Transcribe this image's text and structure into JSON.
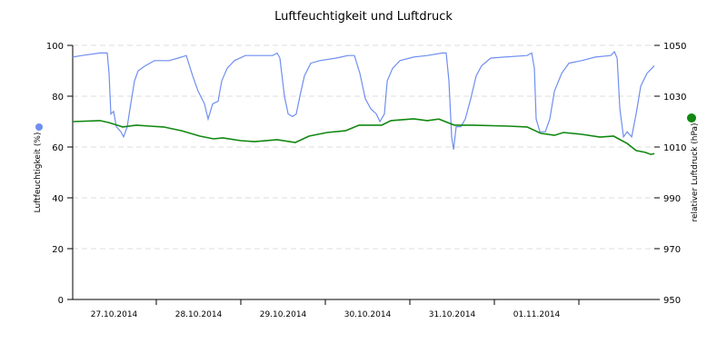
{
  "chart_data": {
    "type": "line",
    "title": "Luftfeuchtigkeit und Luftdruck",
    "xlabel": "",
    "x_tick_labels": [
      "27.10.2014",
      "28.10.2014",
      "29.10.2014",
      "30.10.2014",
      "31.10.2014",
      "01.11.2014"
    ],
    "xlim": [
      "27.10.2014 00:00",
      "02.11.2014 21:30"
    ],
    "grid": true,
    "y_left": {
      "label": "Luftfeuchtigkeit (%)",
      "lim": [
        0,
        100
      ],
      "ticks": [
        "0",
        "20",
        "40",
        "60",
        "80",
        "100"
      ]
    },
    "y_right": {
      "label": "relativer Luftdruck (hPa)",
      "lim": [
        950,
        1050
      ],
      "ticks": [
        "950",
        "970",
        "990",
        "1010",
        "1030",
        "1050"
      ]
    },
    "series": [
      {
        "axis": "left",
        "color": "#6f8ff0",
        "points": [
          [
            "27.10.2014 00:15",
            95.4
          ],
          [
            "27.10.2014 02:50",
            96
          ],
          [
            "27.10.2014 08:00",
            97
          ],
          [
            "27.10.2014 10:04",
            97
          ],
          [
            "27.10.2014 10:35",
            89
          ],
          [
            "27.10.2014 11:06",
            73
          ],
          [
            "27.10.2014 11:52",
            74
          ],
          [
            "27.10.2014 12:39",
            68
          ],
          [
            "27.10.2014 13:56",
            66
          ],
          [
            "27.10.2014 14:43",
            64
          ],
          [
            "27.10.2014 15:45",
            68
          ],
          [
            "27.10.2014 16:31",
            75
          ],
          [
            "27.10.2014 17:49",
            86
          ],
          [
            "27.10.2014 18:50",
            90
          ],
          [
            "27.10.2014 20:54",
            92
          ],
          [
            "27.10.2014 23:29",
            94
          ],
          [
            "28.10.2014 03:37",
            94
          ],
          [
            "28.10.2014 06:12",
            95
          ],
          [
            "28.10.2014 08:31",
            96
          ],
          [
            "28.10.2014 10:20",
            88
          ],
          [
            "28.10.2014 11:53",
            82
          ],
          [
            "28.10.2014 13:41",
            77
          ],
          [
            "28.10.2014 14:43",
            71
          ],
          [
            "28.10.2014 16:00",
            77
          ],
          [
            "28.10.2014 17:33",
            78
          ],
          [
            "28.10.2014 18:35",
            86
          ],
          [
            "28.10.2014 20:08",
            91
          ],
          [
            "28.10.2014 22:12",
            94
          ],
          [
            "29.10.2014 01:18",
            96
          ],
          [
            "29.10.2014 09:02",
            96
          ],
          [
            "29.10.2014 10:20",
            97
          ],
          [
            "29.10.2014 11:06",
            95
          ],
          [
            "29.10.2014 12:24",
            80
          ],
          [
            "29.10.2014 13:26",
            73
          ],
          [
            "29.10.2014 14:43",
            72
          ],
          [
            "29.10.2014 15:45",
            73
          ],
          [
            "29.10.2014 16:47",
            80
          ],
          [
            "29.10.2014 18:04",
            88
          ],
          [
            "29.10.2014 19:52",
            93
          ],
          [
            "29.10.2014 22:27",
            94
          ],
          [
            "30.10.2014 03:06",
            95
          ],
          [
            "30.10.2014 06:27",
            96
          ],
          [
            "30.10.2014 08:16",
            96
          ],
          [
            "30.10.2014 09:49",
            89
          ],
          [
            "30.10.2014 11:22",
            79
          ],
          [
            "30.10.2014 12:55",
            75
          ],
          [
            "30.10.2014 14:28",
            73
          ],
          [
            "30.10.2014 15:30",
            70
          ],
          [
            "30.10.2014 16:47",
            73
          ],
          [
            "30.10.2014 17:34",
            86
          ],
          [
            "30.10.2014 19:07",
            91
          ],
          [
            "30.10.2014 21:11",
            94
          ],
          [
            "31.10.2014 01:03",
            95.4
          ],
          [
            "31.10.2014 04:55",
            96
          ],
          [
            "31.10.2014 09:18",
            97
          ],
          [
            "31.10.2014 10:20",
            97
          ],
          [
            "31.10.2014 11:06",
            86
          ],
          [
            "31.10.2014 11:53",
            64
          ],
          [
            "31.10.2014 12:24",
            59
          ],
          [
            "31.10.2014 13:10",
            68
          ],
          [
            "31.10.2014 14:28",
            68
          ],
          [
            "31.10.2014 15:45",
            71
          ],
          [
            "31.10.2014 17:18",
            79
          ],
          [
            "31.10.2014 18:51",
            88
          ],
          [
            "31.10.2014 20:24",
            92
          ],
          [
            "31.10.2014 22:59",
            95
          ],
          [
            "01.11.2014 02:51",
            95.4
          ],
          [
            "01.11.2014 09:18",
            96
          ],
          [
            "01.11.2014 10:36",
            97
          ],
          [
            "01.11.2014 11:22",
            91
          ],
          [
            "01.11.2014 11:53",
            71
          ],
          [
            "01.11.2014 12:55",
            66
          ],
          [
            "01.11.2014 14:28",
            66
          ],
          [
            "01.11.2014 15:45",
            71
          ],
          [
            "01.11.2014 17:03",
            82
          ],
          [
            "01.11.2014 19:07",
            89
          ],
          [
            "01.11.2014 21:11",
            93
          ],
          [
            "02.11.2014 00:48",
            94
          ],
          [
            "02.11.2014 04:41",
            95.4
          ],
          [
            "02.11.2014 09:04",
            96
          ],
          [
            "02.11.2014 10:06",
            97.5
          ],
          [
            "02.11.2014 10:52",
            95
          ],
          [
            "02.11.2014 11:38",
            75
          ],
          [
            "02.11.2014 12:40",
            64
          ],
          [
            "02.11.2014 13:42",
            66
          ],
          [
            "02.11.2014 14:59",
            64
          ],
          [
            "02.11.2014 16:16",
            73
          ],
          [
            "02.11.2014 17:34",
            84
          ],
          [
            "02.11.2014 19:22",
            89
          ],
          [
            "02.11.2014 21:26",
            92
          ]
        ]
      },
      {
        "axis": "right",
        "color": "#118811",
        "points": [
          [
            "27.10.2014 00:15",
            1020
          ],
          [
            "27.10.2014 08:00",
            1020.4
          ],
          [
            "27.10.2014 10:35",
            1019.6
          ],
          [
            "27.10.2014 14:27",
            1017.9
          ],
          [
            "27.10.2014 18:19",
            1018.6
          ],
          [
            "27.10.2014 22:12",
            1018.2
          ],
          [
            "28.10.2014 02:04",
            1017.9
          ],
          [
            "28.10.2014 07:14",
            1016.4
          ],
          [
            "28.10.2014 12:23",
            1014.3
          ],
          [
            "28.10.2014 16:16",
            1013.2
          ],
          [
            "28.10.2014 18:51",
            1013.6
          ],
          [
            "29.10.2014 00:00",
            1012.5
          ],
          [
            "29.10.2014 03:53",
            1012.1
          ],
          [
            "29.10.2014 10:20",
            1012.9
          ],
          [
            "29.10.2014 15:29",
            1011.8
          ],
          [
            "29.10.2014 19:22",
            1014.3
          ],
          [
            "30.10.2014 00:32",
            1015.7
          ],
          [
            "30.10.2014 05:42",
            1016.4
          ],
          [
            "30.10.2014 09:34",
            1018.6
          ],
          [
            "30.10.2014 16:01",
            1018.6
          ],
          [
            "30.10.2014 18:36",
            1020.4
          ],
          [
            "31.10.2014 01:03",
            1021.1
          ],
          [
            "31.10.2014 04:55",
            1020.4
          ],
          [
            "31.10.2014 08:16",
            1021
          ],
          [
            "31.10.2014 12:39",
            1018.6
          ],
          [
            "31.10.2014 17:49",
            1018.6
          ],
          [
            "01.11.2014 04:09",
            1018.2
          ],
          [
            "01.11.2014 09:18",
            1017.9
          ],
          [
            "01.11.2014 13:10",
            1015.4
          ],
          [
            "01.11.2014 17:03",
            1014.6
          ],
          [
            "01.11.2014 19:38",
            1015.7
          ],
          [
            "02.11.2014 00:48",
            1015
          ],
          [
            "02.11.2014 06:00",
            1013.9
          ],
          [
            "02.11.2014 09:52",
            1014.3
          ],
          [
            "02.11.2014 13:42",
            1011.4
          ],
          [
            "02.11.2014 16:16",
            1008.6
          ],
          [
            "02.11.2014 18:51",
            1007.9
          ],
          [
            "02.11.2014 20:24",
            1007.1
          ],
          [
            "02.11.2014 21:26",
            1007.4
          ]
        ]
      }
    ]
  }
}
